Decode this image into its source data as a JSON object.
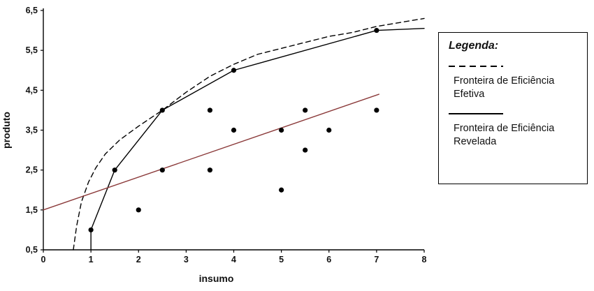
{
  "legend": {
    "title": "Legenda:",
    "items": [
      {
        "label": "Fronteira de Eficiência Efetiva",
        "style": "dashed"
      },
      {
        "label": "Fronteira de Eficiência Revelada",
        "style": "solid"
      }
    ]
  },
  "chart_data": {
    "type": "scatter",
    "title": "",
    "xlabel": "insumo",
    "ylabel": "produto",
    "xlim": [
      0,
      8
    ],
    "ylim": [
      0.5,
      6.5
    ],
    "grid": false,
    "legend_position": "right-outside",
    "x_tick_values": [
      0,
      1,
      2,
      3,
      4,
      5,
      6,
      7,
      8
    ],
    "x_tick_labels": [
      "0",
      "1",
      "2",
      "3",
      "4",
      "5",
      "6",
      "7",
      "8"
    ],
    "y_tick_values": [
      0.5,
      1.5,
      2.5,
      3.5,
      4.5,
      5.5,
      6.5
    ],
    "y_tick_labels": [
      "0,5",
      "1,5",
      "2,5",
      "3,5",
      "4,5",
      "5,5",
      "6,5"
    ],
    "point_color": "#000000",
    "points": [
      [
        1,
        1
      ],
      [
        1.5,
        2.5
      ],
      [
        2,
        1.5
      ],
      [
        2.5,
        2.5
      ],
      [
        2.5,
        4
      ],
      [
        3.5,
        2.5
      ],
      [
        3.5,
        4
      ],
      [
        4,
        3.5
      ],
      [
        4,
        5
      ],
      [
        5,
        2
      ],
      [
        5,
        3.5
      ],
      [
        5.5,
        3
      ],
      [
        5.5,
        4
      ],
      [
        6,
        3.5
      ],
      [
        7,
        4
      ],
      [
        7,
        6
      ]
    ],
    "series": [
      {
        "name": "Fronteira de Eficiência Efetiva",
        "style": "dashed",
        "color": "#000000",
        "points": [
          [
            0.63,
            0.5
          ],
          [
            0.7,
            1.1
          ],
          [
            0.8,
            1.7
          ],
          [
            0.95,
            2.2
          ],
          [
            1.1,
            2.55
          ],
          [
            1.3,
            2.9
          ],
          [
            1.6,
            3.25
          ],
          [
            2.0,
            3.6
          ],
          [
            2.5,
            4.0
          ],
          [
            3.0,
            4.45
          ],
          [
            3.5,
            4.85
          ],
          [
            4.0,
            5.15
          ],
          [
            4.5,
            5.4
          ],
          [
            5.0,
            5.55
          ],
          [
            5.5,
            5.7
          ],
          [
            6.0,
            5.85
          ],
          [
            6.5,
            5.95
          ],
          [
            7.0,
            6.1
          ],
          [
            7.5,
            6.2
          ],
          [
            8.0,
            6.3
          ]
        ]
      },
      {
        "name": "Fronteira de Eficiência Revelada",
        "style": "solid",
        "color": "#000000",
        "points": [
          [
            1,
            0.5
          ],
          [
            1,
            1
          ],
          [
            1.5,
            2.5
          ],
          [
            2.5,
            4
          ],
          [
            4,
            5
          ],
          [
            7,
            6
          ],
          [
            8,
            6.05
          ]
        ]
      },
      {
        "name": "linha-de-regressao",
        "style": "solid",
        "color": "#8b3a3a",
        "points": [
          [
            0,
            1.5
          ],
          [
            7.05,
            4.4
          ]
        ]
      }
    ]
  }
}
